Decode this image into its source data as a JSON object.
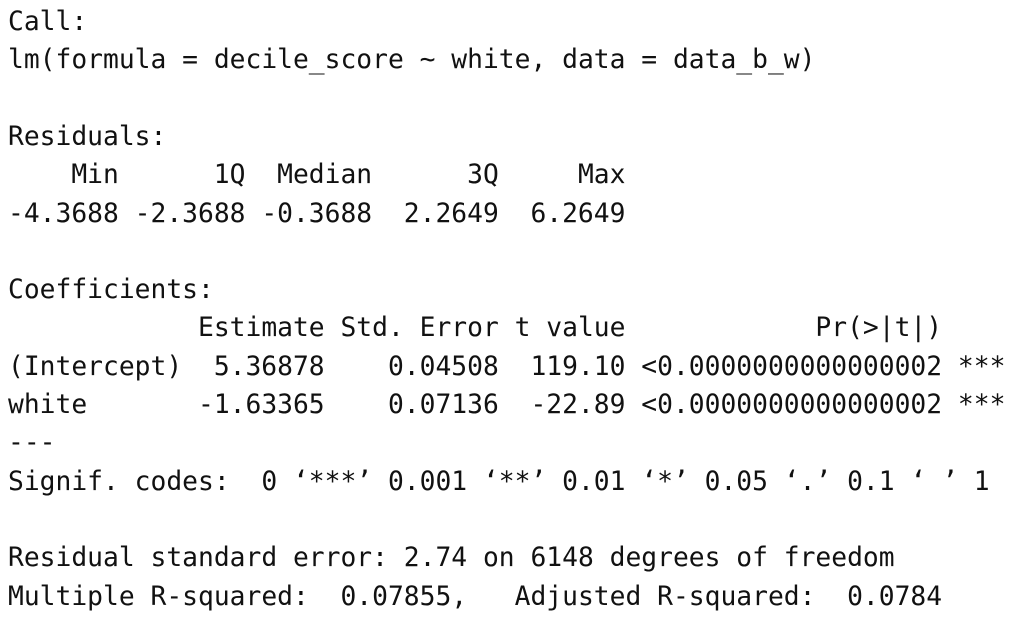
{
  "call": {
    "label": "Call:",
    "formula": "lm(formula = decile_score ~ white, data = data_b_w)"
  },
  "residuals": {
    "label": "Residuals:",
    "headers": [
      "Min",
      "1Q",
      "Median",
      "3Q",
      "Max"
    ],
    "values": [
      "-4.3688",
      "-2.3688",
      "-0.3688",
      "2.2649",
      "6.2649"
    ]
  },
  "coefficients": {
    "label": "Coefficients:",
    "headers": [
      "Estimate",
      "Std. Error",
      "t value",
      "Pr(>|t|)"
    ],
    "rows": [
      {
        "name": "(Intercept)",
        "cells": [
          "5.36878",
          "0.04508",
          "119.10",
          "<0.0000000000000002"
        ],
        "signif": "***"
      },
      {
        "name": "white",
        "cells": [
          "-1.63365",
          "0.07136",
          "-22.89",
          "<0.0000000000000002"
        ],
        "signif": "***"
      }
    ]
  },
  "separator": "---",
  "signif_codes": "Signif. codes:  0 ‘***’ 0.001 ‘**’ 0.01 ‘*’ 0.05 ‘.’ 0.1 ‘ ’ 1",
  "summary": {
    "residual_standard_error": "Residual standard error: 2.74 on 6148 degrees of freedom",
    "multiple_r_squared": "Multiple R-squared:  0.07855,",
    "adjusted_r_squared": "Adjusted R-squared:  0.0784"
  }
}
